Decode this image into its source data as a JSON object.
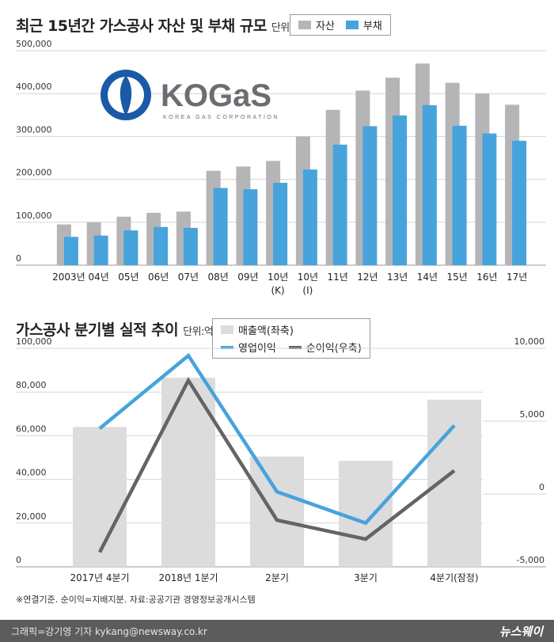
{
  "chart1": {
    "title": "최근 15년간 가스공사 자산 및 부채 규모",
    "unit": "단위:억원",
    "legend_asset": "자산",
    "legend_debt": "부채",
    "logo_text": "KOGaS",
    "logo_subtext": "KOREA GAS CORPORATION"
  },
  "chart2": {
    "title": "가스공사 분기별 실적 추이",
    "unit": "단위:억원",
    "legend_sales": "매출액(좌축)",
    "legend_op": "영업이익",
    "legend_net": "순이익(우축)"
  },
  "note": "※연결기준. 순이익=지배지분. 자료:공공기관 경영정보공개시스템",
  "footer": {
    "credit": "그래픽=강기영 기자 kykang@newsway.co.kr",
    "brand": "뉴스웨이"
  },
  "colors": {
    "asset": "#b5b5b7",
    "debt": "#46a3dc",
    "sales": "#dcdcdc",
    "op": "#46a3dc",
    "net": "#646464"
  },
  "chart_data": [
    {
      "type": "bar",
      "title": "최근 15년간 가스공사 자산 및 부채 규모",
      "unit": "단위:억원",
      "categories": [
        "2003년",
        "04년",
        "05년",
        "06년",
        "07년",
        "08년",
        "09년",
        "10년\n(K)",
        "10년\n(I)",
        "11년",
        "12년",
        "13년",
        "14년",
        "15년",
        "16년",
        "17년"
      ],
      "series": [
        {
          "name": "자산",
          "color": "#b5b5b7",
          "values": [
            95000,
            100000,
            113000,
            122000,
            125000,
            220000,
            230000,
            243000,
            300000,
            362000,
            407000,
            437000,
            470000,
            425000,
            400000,
            374000
          ]
        },
        {
          "name": "부채",
          "color": "#46a3dc",
          "values": [
            66000,
            69000,
            81000,
            89000,
            87000,
            180000,
            177000,
            192000,
            223000,
            281000,
            324000,
            349000,
            373000,
            325000,
            307000,
            290000
          ]
        }
      ],
      "yticks": [
        0,
        100000,
        200000,
        300000,
        400000,
        500000
      ],
      "ytick_labels": [
        "0",
        "100,000",
        "200,000",
        "300,000",
        "400,000",
        "500,000"
      ],
      "ylim": [
        0,
        500000
      ],
      "grid": true,
      "legend": "top-right"
    },
    {
      "type": "bar+line",
      "title": "가스공사 분기별 실적 추이",
      "unit": "단위:억원",
      "categories": [
        "2017년 4분기",
        "2018년 1분기",
        "2분기",
        "3분기",
        "4분기(잠정)"
      ],
      "bars": {
        "name": "매출액(좌축)",
        "axis": "left",
        "color": "#dcdcdc",
        "values": [
          64000,
          86500,
          50500,
          48500,
          76500
        ]
      },
      "lines": [
        {
          "name": "영업이익",
          "axis": "right",
          "color": "#46a3dc",
          "values": [
            4500,
            9500,
            150,
            -2000,
            4700
          ]
        },
        {
          "name": "순이익(우축)",
          "axis": "right",
          "color": "#646464",
          "values": [
            -4000,
            7800,
            -1800,
            -3100,
            1600
          ]
        }
      ],
      "yticks_left": [
        0,
        20000,
        40000,
        60000,
        80000,
        100000
      ],
      "ytick_labels_left": [
        "0",
        "20,000",
        "40,000",
        "60,000",
        "80,000",
        "100,000"
      ],
      "ylim_left": [
        0,
        100000
      ],
      "yticks_right": [
        -5000,
        0,
        5000,
        10000
      ],
      "ytick_labels_right": [
        "-5,000",
        "0",
        "5,000",
        "10,000"
      ],
      "ylim_right": [
        -5000,
        10000
      ],
      "grid": true,
      "legend": "top-right"
    }
  ]
}
